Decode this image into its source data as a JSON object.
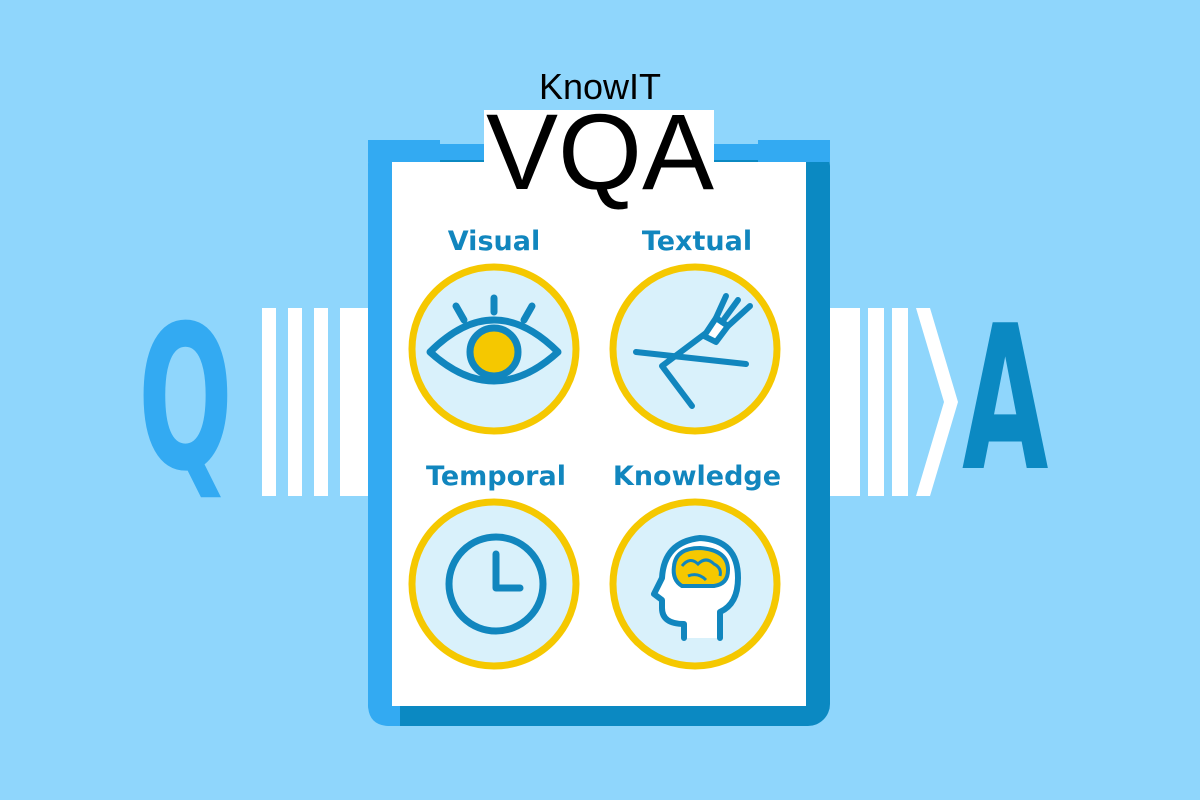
{
  "title": {
    "line1": "KnowIT",
    "line2": "VQA"
  },
  "input_letter": "Q",
  "output_letter": "A",
  "categories": [
    {
      "label": "Visual"
    },
    {
      "label": "Textual"
    },
    {
      "label": "Temporal"
    },
    {
      "label": "Knowledge"
    }
  ],
  "colors": {
    "background": "#8fd6fc",
    "clipboard_light": "#33aaf2",
    "clipboard_dark": "#0b89c2",
    "ring": "#f5c800",
    "icon_fill": "#d9f1fb",
    "label": "#1186be"
  }
}
